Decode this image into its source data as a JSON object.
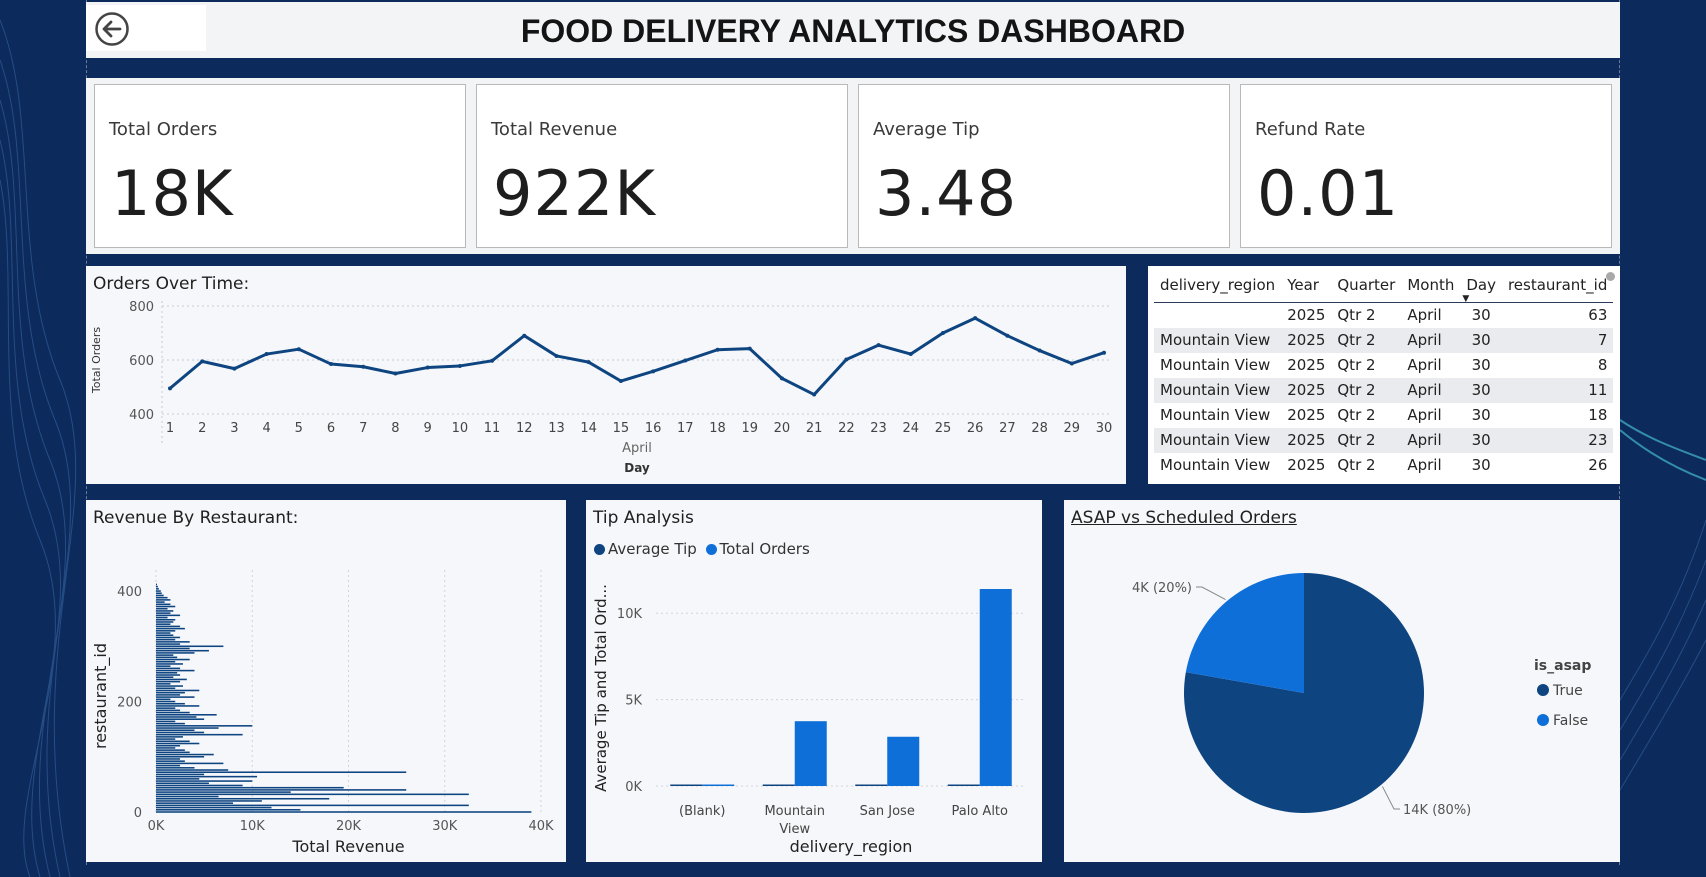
{
  "header": {
    "title": "FOOD DELIVERY ANALYTICS DASHBOARD"
  },
  "kpis": [
    {
      "label": "Total Orders",
      "value": "18K"
    },
    {
      "label": "Total Revenue",
      "value": "922K"
    },
    {
      "label": "Average Tip",
      "value": "3.48"
    },
    {
      "label": "Refund Rate",
      "value": "0.01"
    }
  ],
  "colors": {
    "dark_blue": "#0e4581",
    "bright_blue": "#0f6fd9",
    "background_navy": "#0c2a5c"
  },
  "icons": {
    "back": "back-arrow-circle-icon"
  },
  "table": {
    "columns": [
      "delivery_region",
      "Year",
      "Quarter",
      "Month",
      "Day",
      "restaurant_id"
    ],
    "sort_column": "Day",
    "rows": [
      [
        "",
        "2025",
        "Qtr 2",
        "April",
        "30",
        "63"
      ],
      [
        "Mountain View",
        "2025",
        "Qtr 2",
        "April",
        "30",
        "7"
      ],
      [
        "Mountain View",
        "2025",
        "Qtr 2",
        "April",
        "30",
        "8"
      ],
      [
        "Mountain View",
        "2025",
        "Qtr 2",
        "April",
        "30",
        "11"
      ],
      [
        "Mountain View",
        "2025",
        "Qtr 2",
        "April",
        "30",
        "18"
      ],
      [
        "Mountain View",
        "2025",
        "Qtr 2",
        "April",
        "30",
        "23"
      ],
      [
        "Mountain View",
        "2025",
        "Qtr 2",
        "April",
        "30",
        "26"
      ]
    ]
  },
  "chart_data": [
    {
      "id": "orders_over_time",
      "type": "line",
      "title": "Orders Over Time:",
      "xlabel": "Day",
      "x_group_label": "April",
      "ylabel": "Total Orders",
      "x": [
        1,
        2,
        3,
        4,
        5,
        6,
        7,
        8,
        9,
        10,
        11,
        12,
        13,
        14,
        15,
        16,
        17,
        18,
        19,
        20,
        21,
        22,
        23,
        24,
        25,
        26,
        27,
        28,
        29,
        30
      ],
      "values": [
        495,
        595,
        568,
        622,
        640,
        585,
        575,
        550,
        572,
        578,
        597,
        690,
        615,
        592,
        522,
        558,
        598,
        638,
        642,
        532,
        472,
        602,
        655,
        622,
        700,
        755,
        690,
        635,
        587,
        627
      ],
      "ylim": [
        400,
        800
      ],
      "yticks": [
        400,
        600,
        800
      ],
      "grid": true,
      "color": "#0e4581"
    },
    {
      "id": "revenue_by_restaurant",
      "type": "bar",
      "orientation": "horizontal",
      "title": "Revenue By Restaurant:",
      "xlabel": "Total Revenue",
      "ylabel": "restaurant_id",
      "xlim": [
        0,
        40000
      ],
      "xticks": [
        0,
        10000,
        20000,
        30000,
        40000
      ],
      "xtick_labels": [
        "0K",
        "10K",
        "20K",
        "30K",
        "40K"
      ],
      "ylim": [
        0,
        420
      ],
      "yticks": [
        0,
        200,
        400
      ],
      "grid": true,
      "color": "#0e4581",
      "restaurant_ids": [
        0,
        4,
        8,
        12,
        16,
        20,
        24,
        28,
        32,
        36,
        40,
        44,
        48,
        52,
        56,
        60,
        64,
        68,
        72,
        76,
        80,
        84,
        88,
        92,
        96,
        100,
        104,
        108,
        112,
        116,
        120,
        124,
        128,
        132,
        136,
        140,
        144,
        148,
        152,
        156,
        160,
        164,
        168,
        172,
        176,
        180,
        184,
        188,
        192,
        196,
        200,
        204,
        208,
        212,
        216,
        220,
        224,
        228,
        232,
        236,
        240,
        244,
        248,
        252,
        256,
        260,
        264,
        268,
        272,
        276,
        280,
        284,
        288,
        292,
        296,
        300,
        304,
        308,
        312,
        316,
        320,
        324,
        328,
        332,
        336,
        340,
        344,
        348,
        352,
        356,
        360,
        364,
        368,
        372,
        376,
        380,
        384,
        388,
        392,
        396,
        400,
        404,
        408,
        412
      ],
      "values": [
        39000,
        15000,
        12000,
        32500,
        8000,
        11000,
        18000,
        6500,
        32500,
        14000,
        26000,
        19500,
        9000,
        5500,
        10000,
        4500,
        10500,
        5000,
        26000,
        7500,
        4000,
        2500,
        7000,
        3000,
        2500,
        5000,
        6000,
        3500,
        3000,
        2000,
        2500,
        4500,
        3500,
        2000,
        2800,
        9000,
        5000,
        4000,
        6500,
        10000,
        3000,
        2000,
        5000,
        4200,
        6300,
        3500,
        2500,
        2000,
        4500,
        3000,
        2000,
        1500,
        4000,
        2500,
        3000,
        4500,
        2000,
        2800,
        1500,
        2500,
        3200,
        1800,
        2500,
        2200,
        4000,
        2500,
        1500,
        2800,
        2000,
        3500,
        2200,
        1800,
        4000,
        5500,
        3500,
        7000,
        2500,
        3500,
        2000,
        2500,
        1800,
        1500,
        2000,
        3000,
        2500,
        1500,
        1800,
        2000,
        1200,
        2500,
        1500,
        1800,
        1200,
        2000,
        1500,
        900,
        1500,
        1200,
        800,
        600,
        500,
        300,
        200,
        100
      ]
    },
    {
      "id": "tip_analysis",
      "type": "bar",
      "title": "Tip Analysis",
      "xlabel": "delivery_region",
      "ylabel": "Average Tip and Total Ord...",
      "categories": [
        "(Blank)",
        "Mountain View",
        "San Jose",
        "Palo Alto"
      ],
      "series": [
        {
          "name": "Average Tip",
          "values": [
            3.5,
            3.4,
            3.5,
            3.5
          ],
          "color": "#0e4581"
        },
        {
          "name": "Total Orders",
          "values": [
            30,
            3750,
            2850,
            11400
          ],
          "color": "#0f6fd9"
        }
      ],
      "ylim": [
        0,
        12500
      ],
      "yticks": [
        0,
        5000,
        10000
      ],
      "ytick_labels": [
        "0K",
        "5K",
        "10K"
      ],
      "legend": "top-left",
      "grid": true
    },
    {
      "id": "asap_vs_scheduled",
      "type": "pie",
      "title": "ASAP vs Scheduled Orders",
      "legend_title": "is_asap",
      "legend": "right",
      "slices": [
        {
          "label": "True",
          "value": 14000,
          "percent": 80,
          "data_label": "14K (80%)",
          "color": "#0e4581"
        },
        {
          "label": "False",
          "value": 4000,
          "percent": 20,
          "data_label": "4K (20%)",
          "color": "#0f6fd9"
        }
      ]
    }
  ]
}
